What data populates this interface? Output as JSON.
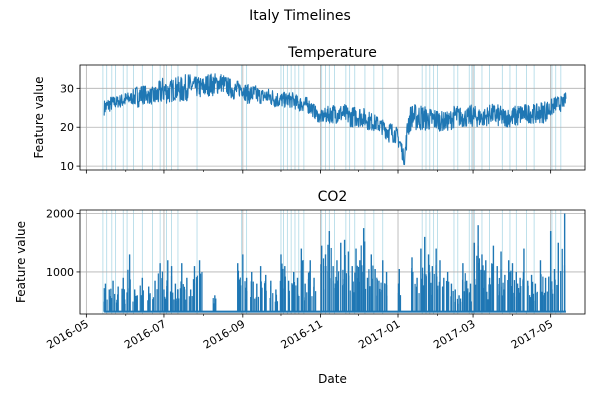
{
  "suptitle": "Italy Timelines",
  "colors": {
    "series": "#1f77b4",
    "event": "#add8e6",
    "grid": "#b0b0b0"
  },
  "chart_data": [
    {
      "type": "line",
      "title": "Temperature",
      "ylabel": "Feature value",
      "xlabel": "",
      "xlim": [
        "2016-04-26",
        "2017-05-28"
      ],
      "ylim": [
        9,
        36
      ],
      "yticks": [
        10,
        20,
        30
      ],
      "grid": true,
      "series": [
        {
          "x": [
            "2016-05-15",
            "2016-05-20",
            "2016-05-25",
            "2016-05-31",
            "2016-06-05",
            "2016-06-10",
            "2016-06-15",
            "2016-06-20",
            "2016-06-25",
            "2016-06-30",
            "2016-07-05",
            "2016-07-10",
            "2016-07-15",
            "2016-07-20",
            "2016-07-25",
            "2016-07-31",
            "2016-08-05",
            "2016-08-10",
            "2016-08-15",
            "2016-08-20",
            "2016-08-25",
            "2016-08-31",
            "2016-09-05",
            "2016-09-10",
            "2016-09-15",
            "2016-09-20",
            "2016-09-25",
            "2016-09-30",
            "2016-10-05",
            "2016-10-10",
            "2016-10-15",
            "2016-10-20",
            "2016-10-25",
            "2016-10-31",
            "2016-11-05",
            "2016-11-10",
            "2016-11-15",
            "2016-11-20",
            "2016-11-25",
            "2016-11-30",
            "2016-12-05",
            "2016-12-10",
            "2016-12-15",
            "2016-12-20",
            "2016-12-25",
            "2016-12-31",
            "2017-01-03",
            "2017-01-06",
            "2017-01-09",
            "2017-01-12",
            "2017-01-15",
            "2017-01-20",
            "2017-01-25",
            "2017-01-31",
            "2017-02-05",
            "2017-02-10",
            "2017-02-15",
            "2017-02-20",
            "2017-02-25",
            "2017-02-28",
            "2017-03-05",
            "2017-03-10",
            "2017-03-15",
            "2017-03-20",
            "2017-03-25",
            "2017-03-31",
            "2017-04-05",
            "2017-04-10",
            "2017-04-15",
            "2017-04-20",
            "2017-04-25",
            "2017-04-30",
            "2017-05-05",
            "2017-05-10",
            "2017-05-13"
          ],
          "values": [
            25,
            26,
            27,
            27,
            28,
            28,
            29,
            29,
            28,
            30,
            29,
            30,
            30,
            31,
            31,
            30,
            31,
            32,
            32,
            31,
            30,
            30,
            29,
            29,
            28,
            28,
            28,
            27,
            27,
            27,
            26,
            26,
            25,
            22,
            23,
            24,
            23,
            23,
            22,
            23,
            22,
            21,
            21,
            20,
            19,
            17,
            15,
            12,
            20,
            22,
            22,
            23,
            21,
            22,
            21,
            21,
            23,
            22,
            22,
            23,
            22,
            22,
            23,
            23,
            23,
            22,
            23,
            24,
            23,
            24,
            24,
            25,
            26,
            26,
            28
          ],
          "range_low": [
            23,
            24,
            25,
            25,
            26,
            25,
            26,
            26,
            25,
            26,
            26,
            27,
            26,
            27,
            28,
            27,
            28,
            28,
            29,
            28,
            27,
            28,
            26,
            26,
            26,
            26,
            25,
            25,
            25,
            25,
            24,
            24,
            23,
            21,
            21,
            21,
            21,
            21,
            20,
            20,
            20,
            19,
            19,
            18,
            16,
            16,
            13,
            10,
            17,
            20,
            19,
            19,
            19,
            19,
            19,
            19,
            20,
            20,
            20,
            20,
            20,
            20,
            21,
            20,
            20,
            20,
            20,
            21,
            21,
            21,
            21,
            22,
            24,
            24,
            26
          ],
          "range_high": [
            27,
            28,
            28,
            29,
            29,
            31,
            31,
            30,
            31,
            33,
            32,
            33,
            33,
            34,
            33,
            33,
            34,
            34,
            34,
            33,
            32,
            32,
            31,
            31,
            30,
            30,
            30,
            29,
            29,
            29,
            28,
            28,
            27,
            24,
            25,
            26,
            26,
            26,
            25,
            26,
            25,
            24,
            23,
            22,
            22,
            20,
            18,
            13,
            25,
            26,
            26,
            26,
            25,
            25,
            24,
            24,
            26,
            25,
            25,
            26,
            25,
            25,
            26,
            26,
            25,
            25,
            26,
            26,
            26,
            26,
            27,
            27,
            28,
            28,
            29
          ]
        }
      ],
      "event_dates": [
        "2016-05-14",
        "2016-05-17",
        "2016-05-21",
        "2016-05-24",
        "2016-05-30",
        "2016-06-02",
        "2016-06-07",
        "2016-06-14",
        "2016-06-22",
        "2016-06-28",
        "2016-07-03",
        "2016-07-07",
        "2016-07-12",
        "2016-07-27",
        "2016-08-31",
        "2016-09-04",
        "2016-10-01",
        "2016-10-03",
        "2016-10-06",
        "2016-10-09",
        "2016-10-12",
        "2016-10-15",
        "2016-10-19",
        "2016-11-02",
        "2016-11-05",
        "2016-11-08",
        "2016-11-12",
        "2016-11-21",
        "2016-11-24",
        "2016-11-28",
        "2016-12-06",
        "2016-12-13",
        "2016-12-20",
        "2017-01-20",
        "2017-01-23",
        "2017-01-26",
        "2017-01-29",
        "2017-02-01",
        "2017-02-14",
        "2017-02-17",
        "2017-02-26",
        "2017-02-28",
        "2017-03-02",
        "2017-03-08",
        "2017-03-14",
        "2017-03-24",
        "2017-03-30",
        "2017-04-04",
        "2017-04-12",
        "2017-04-18",
        "2017-05-02",
        "2017-05-05",
        "2017-05-09"
      ]
    },
    {
      "type": "line",
      "title": "CO2",
      "ylabel": "Feature value",
      "xlabel": "Date",
      "xlim": [
        "2016-04-26",
        "2017-05-28"
      ],
      "ylim": [
        280,
        2060
      ],
      "yticks": [
        1000,
        2000
      ],
      "xticks": [
        "2016-05",
        "2016-07",
        "2016-09",
        "2016-11",
        "2017-01",
        "2017-03",
        "2017-05"
      ],
      "grid": true,
      "baseline": 320,
      "series": [
        {
          "spike_dates": [
            "2016-05-16",
            "2016-05-19",
            "2016-05-22",
            "2016-05-26",
            "2016-05-30",
            "2016-06-02",
            "2016-06-04",
            "2016-06-08",
            "2016-06-10",
            "2016-06-14",
            "2016-06-19",
            "2016-06-24",
            "2016-06-28",
            "2016-07-01",
            "2016-07-04",
            "2016-07-07",
            "2016-07-10",
            "2016-07-12",
            "2016-07-15",
            "2016-07-19",
            "2016-07-22",
            "2016-07-25",
            "2016-07-29",
            "2016-08-10",
            "2016-08-28",
            "2016-09-01",
            "2016-09-04",
            "2016-09-08",
            "2016-09-12",
            "2016-09-15",
            "2016-09-19",
            "2016-09-23",
            "2016-09-27",
            "2016-10-01",
            "2016-10-04",
            "2016-10-07",
            "2016-10-11",
            "2016-10-14",
            "2016-10-17",
            "2016-10-20",
            "2016-10-24",
            "2016-10-27",
            "2016-11-02",
            "2016-11-05",
            "2016-11-08",
            "2016-11-11",
            "2016-11-14",
            "2016-11-17",
            "2016-11-20",
            "2016-11-23",
            "2016-11-26",
            "2016-11-29",
            "2016-12-02",
            "2016-12-05",
            "2016-12-08",
            "2016-12-11",
            "2016-12-14",
            "2016-12-17",
            "2016-12-20",
            "2016-12-23",
            "2017-01-02",
            "2017-01-12",
            "2017-01-16",
            "2017-01-19",
            "2017-01-22",
            "2017-01-25",
            "2017-01-28",
            "2017-01-31",
            "2017-02-03",
            "2017-02-06",
            "2017-02-09",
            "2017-02-12",
            "2017-02-15",
            "2017-02-18",
            "2017-02-21",
            "2017-02-24",
            "2017-02-27",
            "2017-03-02",
            "2017-03-05",
            "2017-03-08",
            "2017-03-11",
            "2017-03-14",
            "2017-03-17",
            "2017-03-20",
            "2017-03-23",
            "2017-03-26",
            "2017-03-29",
            "2017-04-01",
            "2017-04-04",
            "2017-04-07",
            "2017-04-10",
            "2017-04-13",
            "2017-04-16",
            "2017-04-19",
            "2017-04-23",
            "2017-04-27",
            "2017-05-01",
            "2017-05-04",
            "2017-05-07",
            "2017-05-12"
          ],
          "spike_values": [
            800,
            700,
            850,
            750,
            900,
            650,
            1300,
            700,
            600,
            900,
            750,
            850,
            1150,
            700,
            1200,
            1100,
            800,
            700,
            1150,
            900,
            700,
            1100,
            1200,
            600,
            1150,
            1300,
            900,
            1000,
            800,
            1100,
            950,
            850,
            700,
            1300,
            1100,
            850,
            1000,
            900,
            1400,
            800,
            1200,
            900,
            1450,
            1300,
            1700,
            1100,
            1200,
            1500,
            1550,
            1350,
            1100,
            1400,
            1200,
            1750,
            900,
            1300,
            1050,
            850,
            1200,
            1000,
            1050,
            1250,
            900,
            1400,
            1600,
            1300,
            1100,
            1400,
            1200,
            900,
            1000,
            800,
            700,
            600,
            1150,
            850,
            800,
            1500,
            1800,
            1300,
            1200,
            900,
            1450,
            1100,
            1350,
            950,
            1200,
            1150,
            1000,
            900,
            1400,
            850,
            950,
            800,
            1200,
            900,
            1700,
            1050,
            1500,
            2000
          ]
        }
      ],
      "event_dates": [
        "2016-05-14",
        "2016-05-17",
        "2016-05-21",
        "2016-05-24",
        "2016-05-30",
        "2016-06-02",
        "2016-06-07",
        "2016-06-14",
        "2016-06-22",
        "2016-06-28",
        "2016-07-03",
        "2016-07-07",
        "2016-07-12",
        "2016-07-27",
        "2016-08-31",
        "2016-09-04",
        "2016-10-01",
        "2016-10-03",
        "2016-10-06",
        "2016-10-09",
        "2016-10-12",
        "2016-10-15",
        "2016-10-19",
        "2016-11-02",
        "2016-11-05",
        "2016-11-08",
        "2016-11-12",
        "2016-11-21",
        "2016-11-24",
        "2016-11-28",
        "2016-12-06",
        "2016-12-13",
        "2016-12-20",
        "2017-01-20",
        "2017-01-23",
        "2017-01-26",
        "2017-01-29",
        "2017-02-01",
        "2017-02-14",
        "2017-02-17",
        "2017-02-26",
        "2017-02-28",
        "2017-03-02",
        "2017-03-08",
        "2017-03-14",
        "2017-03-24",
        "2017-03-30",
        "2017-04-04",
        "2017-04-12",
        "2017-04-18",
        "2017-05-02",
        "2017-05-05",
        "2017-05-09"
      ]
    }
  ]
}
